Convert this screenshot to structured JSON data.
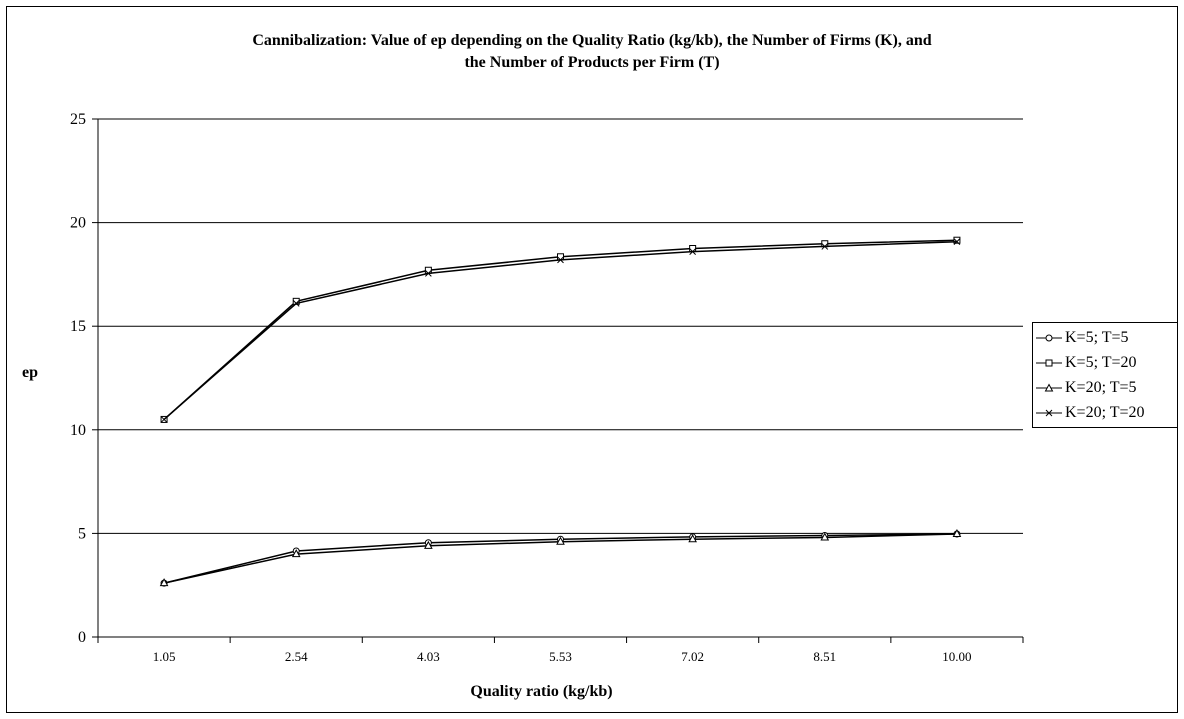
{
  "chart_data": {
    "type": "line",
    "title_lines": [
      "Cannibalization: Value of ep depending on the Quality Ratio (kg/kb), the Number of Firms (K), and",
      "the Number of Products per Firm (T)"
    ],
    "xlabel": "Quality ratio (kg/kb)",
    "ylabel": "ep",
    "categories": [
      "1.05",
      "2.54",
      "4.03",
      "5.53",
      "7.02",
      "8.51",
      "10.00"
    ],
    "ylim": [
      0,
      25
    ],
    "yticks": [
      "0",
      "5",
      "10",
      "15",
      "20",
      "25"
    ],
    "grid": "horizontal",
    "legend_position": "right",
    "series": [
      {
        "name": "K=5; T=5",
        "marker": "circle",
        "values": [
          2.6,
          4.15,
          4.55,
          4.72,
          4.83,
          4.9,
          4.97
        ]
      },
      {
        "name": "K=5; T=20",
        "marker": "square",
        "values": [
          10.5,
          16.2,
          17.7,
          18.35,
          18.75,
          18.98,
          19.15
        ]
      },
      {
        "name": "K=20; T=5",
        "marker": "triangle",
        "values": [
          2.6,
          4.0,
          4.4,
          4.6,
          4.72,
          4.8,
          4.97
        ]
      },
      {
        "name": "K=20; T=20",
        "marker": "x",
        "values": [
          10.5,
          16.1,
          17.55,
          18.2,
          18.6,
          18.85,
          19.08
        ]
      }
    ]
  }
}
